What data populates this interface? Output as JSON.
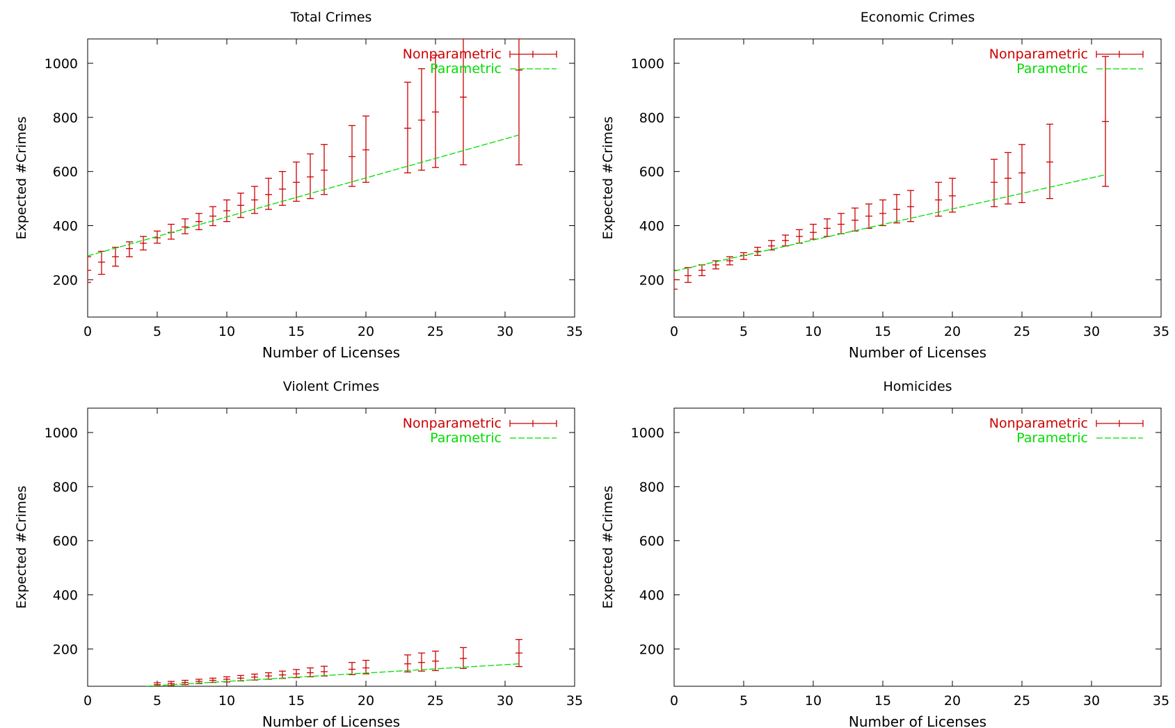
{
  "colors": {
    "nonparametric": "#cc0000",
    "parametric": "#00dd00",
    "axis": "#000000"
  },
  "chart_data": [
    {
      "type": "line",
      "title": "Total Crimes",
      "xlabel": "Number of Licenses",
      "ylabel": "Expected #Crimes",
      "xlim": [
        0,
        35
      ],
      "ylim": [
        62,
        1090
      ],
      "xticks": [
        "0",
        "5",
        "10",
        "15",
        "20",
        "25",
        "30",
        "35"
      ],
      "yticks": [
        "200",
        "400",
        "600",
        "800",
        "1000"
      ],
      "grid": false,
      "legend_position": "top-right",
      "legend": [
        "Nonparametric",
        "Parametric"
      ],
      "series": [
        {
          "name": "Nonparametric",
          "style": "errorbars",
          "points": [
            {
              "x": 0,
              "y": 235,
              "lo": 190,
              "hi": 285
            },
            {
              "x": 1,
              "y": 265,
              "lo": 220,
              "hi": 305
            },
            {
              "x": 2,
              "y": 285,
              "lo": 250,
              "hi": 320
            },
            {
              "x": 3,
              "y": 315,
              "lo": 285,
              "hi": 340
            },
            {
              "x": 4,
              "y": 335,
              "lo": 310,
              "hi": 360
            },
            {
              "x": 5,
              "y": 355,
              "lo": 335,
              "hi": 380
            },
            {
              "x": 6,
              "y": 375,
              "lo": 350,
              "hi": 405
            },
            {
              "x": 7,
              "y": 395,
              "lo": 370,
              "hi": 425
            },
            {
              "x": 8,
              "y": 415,
              "lo": 385,
              "hi": 445
            },
            {
              "x": 9,
              "y": 435,
              "lo": 400,
              "hi": 470
            },
            {
              "x": 10,
              "y": 455,
              "lo": 415,
              "hi": 495
            },
            {
              "x": 11,
              "y": 475,
              "lo": 430,
              "hi": 520
            },
            {
              "x": 12,
              "y": 495,
              "lo": 445,
              "hi": 545
            },
            {
              "x": 13,
              "y": 515,
              "lo": 460,
              "hi": 575
            },
            {
              "x": 14,
              "y": 535,
              "lo": 475,
              "hi": 600
            },
            {
              "x": 15,
              "y": 560,
              "lo": 490,
              "hi": 635
            },
            {
              "x": 16,
              "y": 580,
              "lo": 500,
              "hi": 665
            },
            {
              "x": 17,
              "y": 605,
              "lo": 515,
              "hi": 700
            },
            {
              "x": 19,
              "y": 655,
              "lo": 545,
              "hi": 770
            },
            {
              "x": 20,
              "y": 680,
              "lo": 560,
              "hi": 805
            },
            {
              "x": 23,
              "y": 760,
              "lo": 595,
              "hi": 930
            },
            {
              "x": 24,
              "y": 790,
              "lo": 605,
              "hi": 980
            },
            {
              "x": 25,
              "y": 820,
              "lo": 615,
              "hi": 1030
            },
            {
              "x": 27,
              "y": 875,
              "lo": 625,
              "hi": 1090
            },
            {
              "x": 31,
              "y": 975,
              "lo": 625,
              "hi": 1090
            }
          ]
        },
        {
          "name": "Parametric",
          "style": "dashed",
          "x": [
            0,
            31
          ],
          "y": [
            288,
            735
          ]
        }
      ]
    },
    {
      "type": "line",
      "title": "Economic Crimes",
      "xlabel": "Number of Licenses",
      "ylabel": "Expected #Crimes",
      "xlim": [
        0,
        35
      ],
      "ylim": [
        62,
        1090
      ],
      "xticks": [
        "0",
        "5",
        "10",
        "15",
        "20",
        "25",
        "30",
        "35"
      ],
      "yticks": [
        "200",
        "400",
        "600",
        "800",
        "1000"
      ],
      "grid": false,
      "legend_position": "top-right",
      "legend": [
        "Nonparametric",
        "Parametric"
      ],
      "series": [
        {
          "name": "Nonparametric",
          "style": "errorbars",
          "points": [
            {
              "x": 0,
              "y": 200,
              "lo": 165,
              "hi": 235
            },
            {
              "x": 1,
              "y": 215,
              "lo": 190,
              "hi": 245
            },
            {
              "x": 2,
              "y": 235,
              "lo": 215,
              "hi": 255
            },
            {
              "x": 3,
              "y": 255,
              "lo": 240,
              "hi": 270
            },
            {
              "x": 4,
              "y": 270,
              "lo": 255,
              "hi": 285
            },
            {
              "x": 5,
              "y": 290,
              "lo": 275,
              "hi": 300
            },
            {
              "x": 6,
              "y": 305,
              "lo": 290,
              "hi": 320
            },
            {
              "x": 7,
              "y": 325,
              "lo": 310,
              "hi": 345
            },
            {
              "x": 8,
              "y": 345,
              "lo": 325,
              "hi": 365
            },
            {
              "x": 9,
              "y": 360,
              "lo": 335,
              "hi": 385
            },
            {
              "x": 10,
              "y": 375,
              "lo": 350,
              "hi": 405
            },
            {
              "x": 11,
              "y": 390,
              "lo": 360,
              "hi": 425
            },
            {
              "x": 12,
              "y": 405,
              "lo": 370,
              "hi": 445
            },
            {
              "x": 13,
              "y": 420,
              "lo": 380,
              "hi": 465
            },
            {
              "x": 14,
              "y": 435,
              "lo": 390,
              "hi": 480
            },
            {
              "x": 15,
              "y": 445,
              "lo": 400,
              "hi": 495
            },
            {
              "x": 16,
              "y": 460,
              "lo": 410,
              "hi": 515
            },
            {
              "x": 17,
              "y": 470,
              "lo": 415,
              "hi": 530
            },
            {
              "x": 19,
              "y": 495,
              "lo": 435,
              "hi": 560
            },
            {
              "x": 20,
              "y": 510,
              "lo": 450,
              "hi": 575
            },
            {
              "x": 23,
              "y": 560,
              "lo": 470,
              "hi": 645
            },
            {
              "x": 24,
              "y": 575,
              "lo": 480,
              "hi": 670
            },
            {
              "x": 25,
              "y": 595,
              "lo": 485,
              "hi": 700
            },
            {
              "x": 27,
              "y": 635,
              "lo": 500,
              "hi": 775
            },
            {
              "x": 31,
              "y": 785,
              "lo": 545,
              "hi": 1025
            }
          ]
        },
        {
          "name": "Parametric",
          "style": "dashed",
          "x": [
            0,
            31
          ],
          "y": [
            232,
            588
          ]
        }
      ]
    },
    {
      "type": "line",
      "title": "Violent Crimes",
      "xlabel": "Number of Licenses",
      "ylabel": "Expected #Crimes",
      "xlim": [
        0,
        35
      ],
      "ylim": [
        62,
        1090
      ],
      "xticks": [
        "0",
        "5",
        "10",
        "15",
        "20",
        "25",
        "30",
        "35"
      ],
      "yticks": [
        "200",
        "400",
        "600",
        "800",
        "1000"
      ],
      "grid": false,
      "legend_position": "top-right",
      "legend": [
        "Nonparametric",
        "Parametric"
      ],
      "series": [
        {
          "name": "Nonparametric",
          "style": "errorbars",
          "points": [
            {
              "x": 5,
              "y": 68,
              "lo": 62,
              "hi": 75
            },
            {
              "x": 6,
              "y": 72,
              "lo": 64,
              "hi": 80
            },
            {
              "x": 7,
              "y": 76,
              "lo": 68,
              "hi": 84
            },
            {
              "x": 8,
              "y": 80,
              "lo": 72,
              "hi": 88
            },
            {
              "x": 9,
              "y": 84,
              "lo": 76,
              "hi": 92
            },
            {
              "x": 10,
              "y": 88,
              "lo": 78,
              "hi": 97
            },
            {
              "x": 11,
              "y": 92,
              "lo": 82,
              "hi": 102
            },
            {
              "x": 12,
              "y": 96,
              "lo": 85,
              "hi": 107
            },
            {
              "x": 13,
              "y": 100,
              "lo": 88,
              "hi": 112
            },
            {
              "x": 14,
              "y": 104,
              "lo": 91,
              "hi": 118
            },
            {
              "x": 15,
              "y": 108,
              "lo": 94,
              "hi": 124
            },
            {
              "x": 16,
              "y": 112,
              "lo": 97,
              "hi": 130
            },
            {
              "x": 17,
              "y": 116,
              "lo": 100,
              "hi": 136
            },
            {
              "x": 19,
              "y": 125,
              "lo": 105,
              "hi": 150
            },
            {
              "x": 20,
              "y": 130,
              "lo": 108,
              "hi": 158
            },
            {
              "x": 23,
              "y": 145,
              "lo": 115,
              "hi": 178
            },
            {
              "x": 24,
              "y": 150,
              "lo": 118,
              "hi": 185
            },
            {
              "x": 25,
              "y": 155,
              "lo": 120,
              "hi": 192
            },
            {
              "x": 27,
              "y": 165,
              "lo": 128,
              "hi": 205
            },
            {
              "x": 31,
              "y": 185,
              "lo": 135,
              "hi": 235
            }
          ]
        },
        {
          "name": "Parametric",
          "style": "dashed",
          "x": [
            4.2,
            31
          ],
          "y": [
            62,
            145
          ]
        }
      ]
    },
    {
      "type": "line",
      "title": "Homicides",
      "xlabel": "Number of Licenses",
      "ylabel": "Expected #Crimes",
      "xlim": [
        0,
        35
      ],
      "ylim": [
        62,
        1090
      ],
      "xticks": [
        "0",
        "5",
        "10",
        "15",
        "20",
        "25",
        "30",
        "35"
      ],
      "yticks": [
        "200",
        "400",
        "600",
        "800",
        "1000"
      ],
      "grid": false,
      "legend_position": "top-right",
      "legend": [
        "Nonparametric",
        "Parametric"
      ],
      "series": []
    }
  ]
}
